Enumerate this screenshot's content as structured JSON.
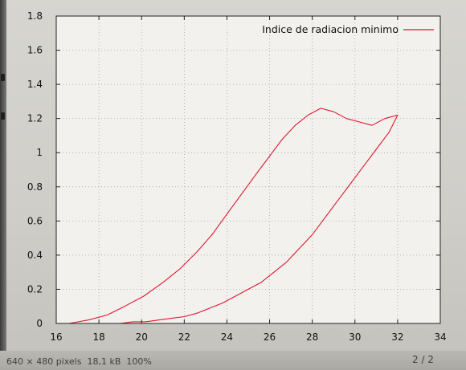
{
  "viewer": {
    "image_info": "640 × 480 pixels  18,1 kB  100%",
    "page_indicator": "2 / 2"
  },
  "chart_data": {
    "type": "line",
    "title": "",
    "xlabel": "",
    "ylabel": "",
    "xlim": [
      16,
      34
    ],
    "ylim": [
      0,
      1.8
    ],
    "xticks": [
      "16",
      "18",
      "20",
      "22",
      "24",
      "26",
      "28",
      "30",
      "32",
      "34"
    ],
    "yticks": [
      "0",
      "0.2",
      "0.4",
      "0.6",
      "0.8",
      "1",
      "1.2",
      "1.4",
      "1.6",
      "1.8"
    ],
    "grid": true,
    "legend": "top-right",
    "series_color": "#e0182f",
    "series": [
      {
        "name": "Indice de radiacion minimo",
        "x": [
          16.6,
          17.5,
          18.4,
          19.2,
          20.1,
          21.0,
          21.8,
          22.6,
          23.3,
          24.0,
          24.7,
          25.4,
          26.0,
          26.6,
          27.2,
          27.8,
          28.4,
          29.0,
          29.6,
          30.2,
          30.8,
          31.4,
          32.0,
          31.6,
          31.0,
          30.4,
          29.8,
          29.2,
          28.6,
          28.0,
          27.4,
          26.8,
          26.2,
          25.6,
          25.0,
          24.4,
          23.8,
          23.2,
          22.6,
          22.0,
          21.4,
          20.8,
          20.2,
          19.6,
          19.0,
          18.4,
          17.8,
          17.2,
          16.8
        ],
        "y": [
          0.0,
          0.02,
          0.05,
          0.1,
          0.16,
          0.24,
          0.32,
          0.42,
          0.52,
          0.64,
          0.76,
          0.88,
          0.98,
          1.08,
          1.16,
          1.22,
          1.26,
          1.24,
          1.2,
          1.18,
          1.16,
          1.2,
          1.22,
          1.12,
          1.02,
          0.92,
          0.82,
          0.72,
          0.62,
          0.52,
          0.44,
          0.36,
          0.3,
          0.24,
          0.2,
          0.16,
          0.12,
          0.09,
          0.06,
          0.04,
          0.03,
          0.02,
          0.01,
          0.01,
          0.0,
          0.0,
          0.0,
          0.0,
          0.0
        ]
      }
    ]
  }
}
